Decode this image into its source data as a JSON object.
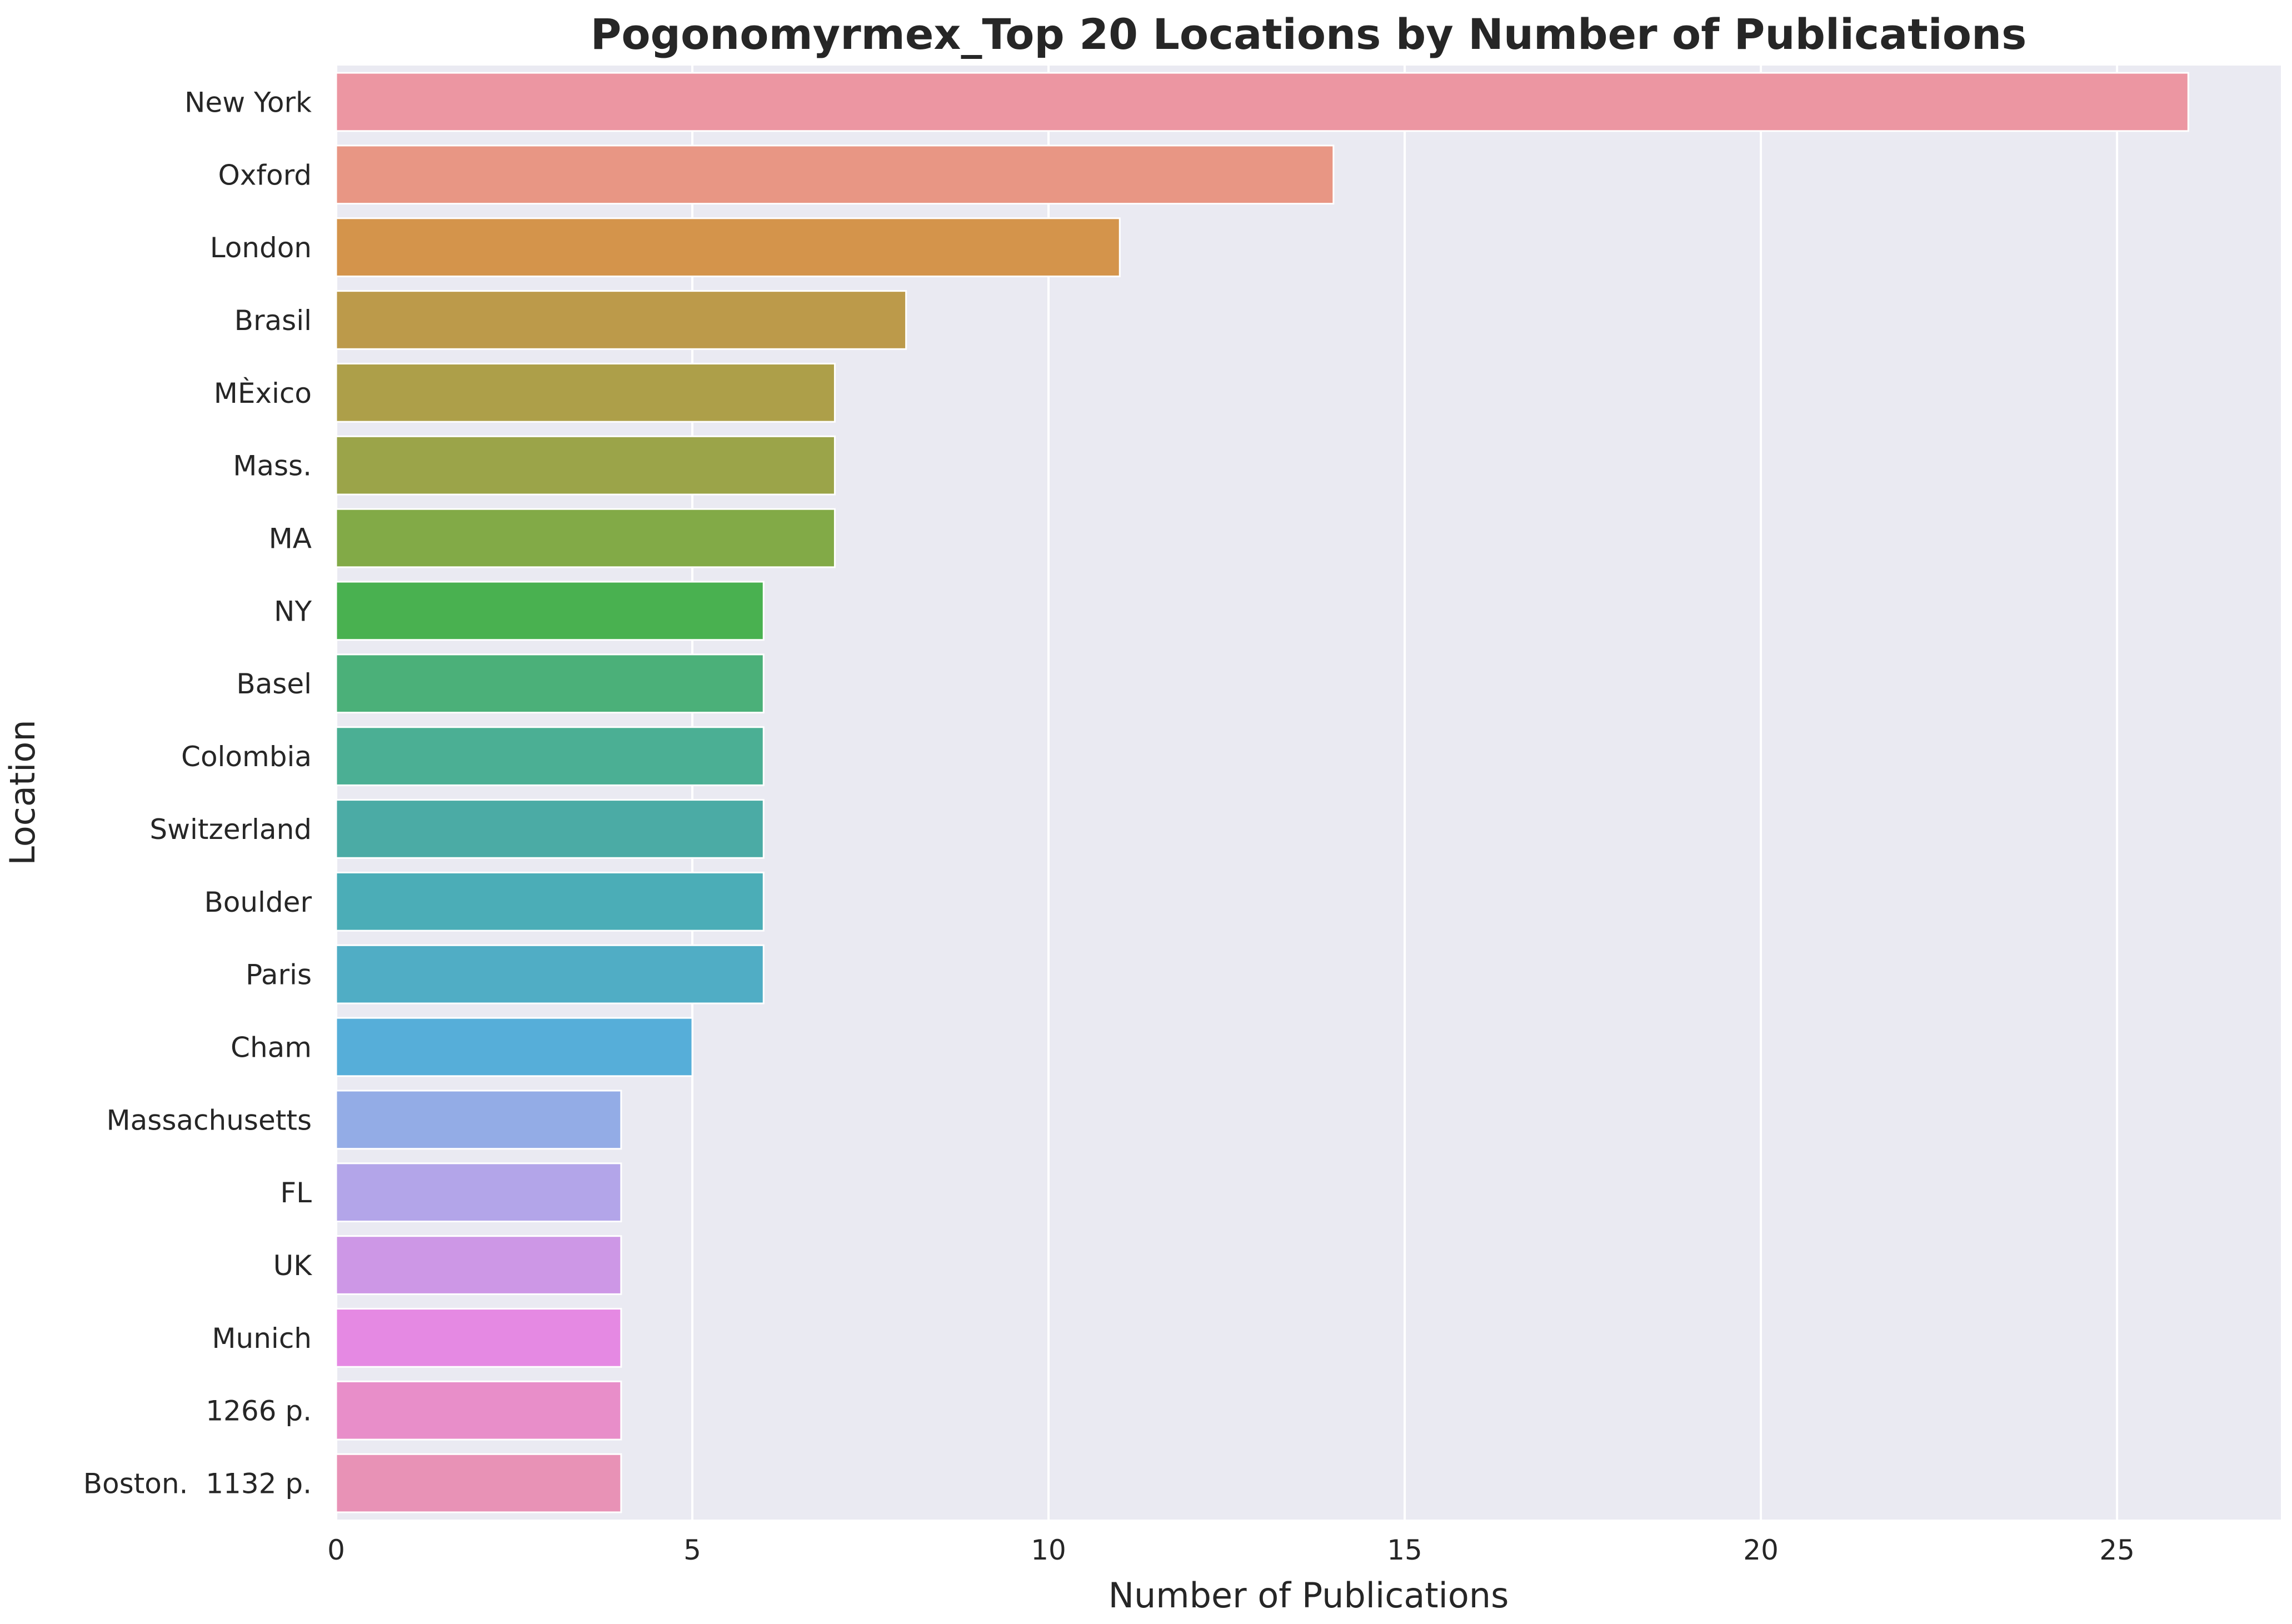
{
  "chart_data": {
    "type": "bar",
    "orientation": "horizontal",
    "title": "Pogonomyrmex_Top 20 Locations by Number of Publications",
    "xlabel": "Number of Publications",
    "ylabel": "Location",
    "xlim": [
      0,
      27.3
    ],
    "xticks": [
      0,
      5,
      10,
      15,
      20,
      25
    ],
    "grid": true,
    "categories": [
      "New York",
      "Oxford",
      "London",
      "Brasil",
      "MÈxico",
      "Mass.",
      "MA",
      "NY",
      "Basel",
      "Colombia",
      "Switzerland",
      "Boulder",
      "Paris",
      "Cham",
      "Massachusetts",
      "FL",
      "UK",
      "Munich",
      "1266 p.",
      "Boston.  1132 p."
    ],
    "values": [
      26,
      14,
      11,
      8,
      7,
      7,
      7,
      6,
      6,
      6,
      6,
      6,
      6,
      5,
      4,
      4,
      4,
      4,
      4,
      4
    ],
    "colors": [
      "#ec96a2",
      "#e89684",
      "#d4944b",
      "#bc9a4a",
      "#ad9f49",
      "#9ba449",
      "#82aa47",
      "#49b150",
      "#4bb079",
      "#4baf94",
      "#4baba5",
      "#4badb7",
      "#50adc5",
      "#56aed9",
      "#93ace6",
      "#b3a5e9",
      "#cd97e6",
      "#e589e3",
      "#e88ec9",
      "#e892b6"
    ],
    "background": "#eaeaf2",
    "grid_color": "#ffffff"
  }
}
